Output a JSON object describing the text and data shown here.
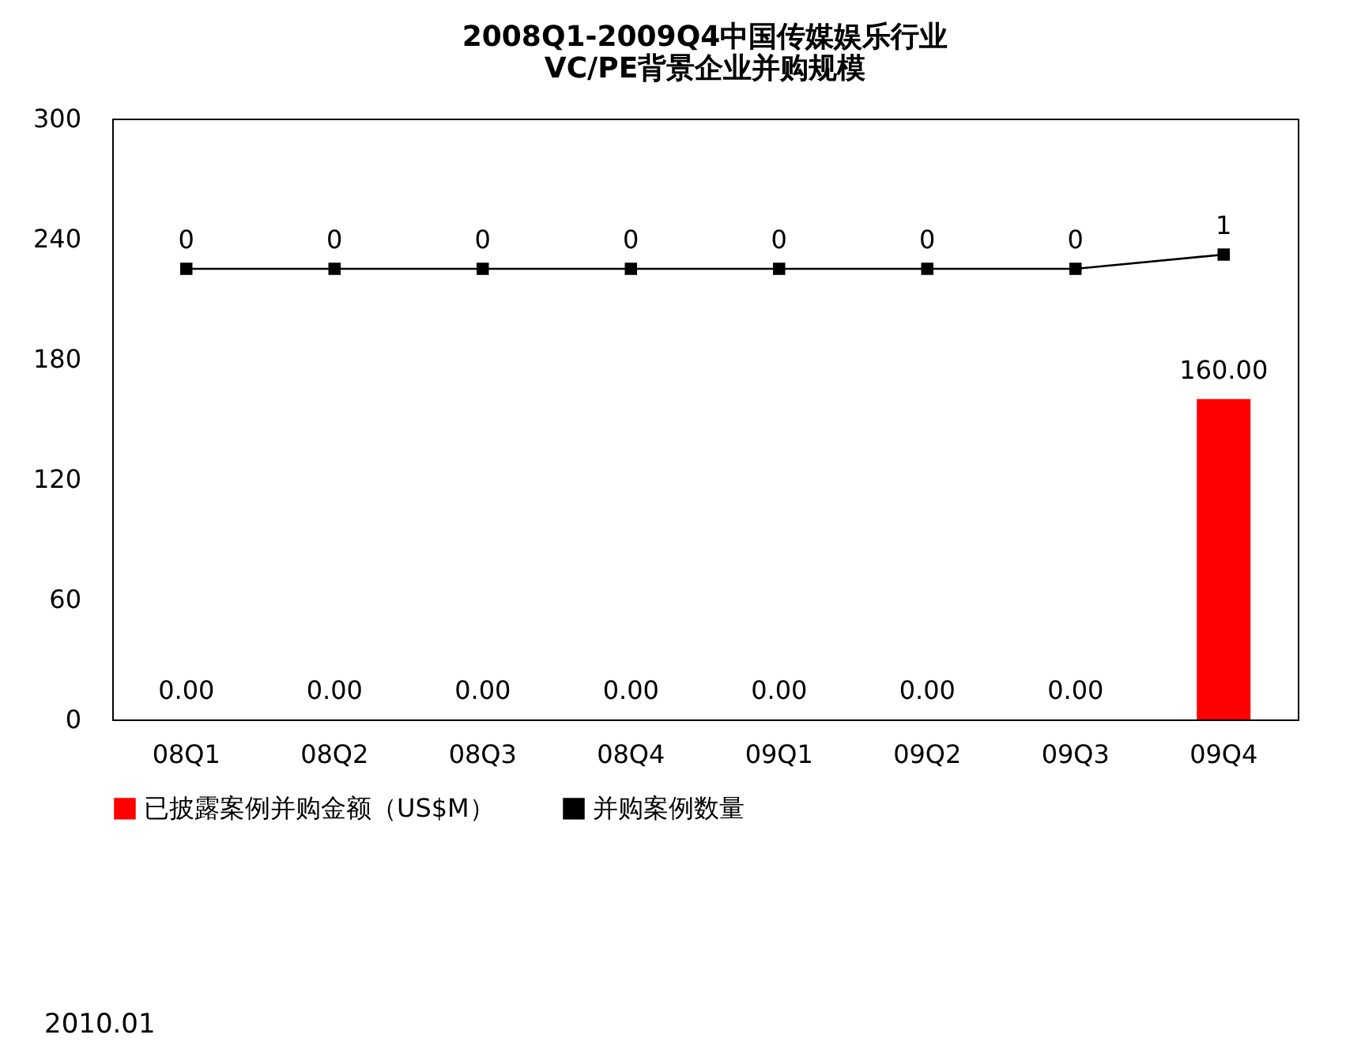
{
  "chart_data": {
    "type": "bar",
    "title": [
      "2008Q1-2009Q4中国传媒娱乐行业",
      "VC/PE背景企业并购规模"
    ],
    "categories": [
      "08Q1",
      "08Q2",
      "08Q3",
      "08Q4",
      "09Q1",
      "09Q2",
      "09Q3",
      "09Q4"
    ],
    "series": [
      {
        "name": "已披露案例并购金额（US$M）",
        "color": "#ff0000",
        "values": [
          0,
          0,
          0,
          0,
          0,
          0,
          0,
          160
        ],
        "value_labels": [
          "0.00",
          "0.00",
          "0.00",
          "0.00",
          "0.00",
          "0.00",
          "0.00",
          "160.00"
        ]
      },
      {
        "name": "并购案例数量",
        "type": "line",
        "axis": "y2",
        "color": "#000000",
        "marker": "square",
        "values": [
          0,
          0,
          0,
          0,
          0,
          0,
          0,
          1
        ],
        "value_labels": [
          "0",
          "0",
          "0",
          "0",
          "0",
          "0",
          "0",
          "1"
        ]
      }
    ],
    "ylim": [
      0,
      300
    ],
    "yticks": [
      0,
      60,
      120,
      180,
      240,
      300
    ],
    "grid": false,
    "legend": "bottom",
    "annotations": [
      "2010.01"
    ]
  }
}
